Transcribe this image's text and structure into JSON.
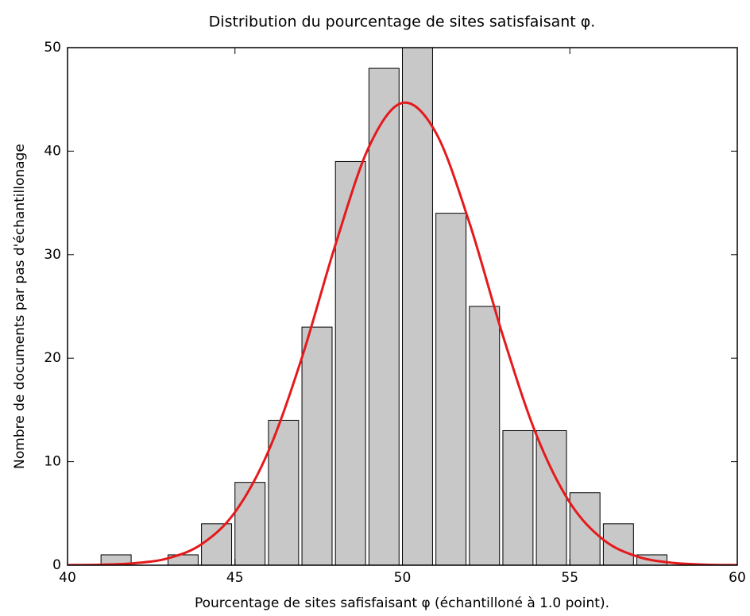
{
  "chart_data": {
    "type": "histogram",
    "title": "Distribution du pourcentage de sites satisfaisant φ.",
    "xlabel": "Pourcentage de sites safisfaisant φ (échantilloné à 1.0 point).",
    "ylabel": "Nombre de documents par pas d'échantillonage",
    "bins": [
      41,
      42,
      43,
      44,
      45,
      46,
      47,
      48,
      49,
      50,
      51,
      52,
      53,
      54,
      55,
      56,
      57,
      58
    ],
    "counts": [
      1,
      0,
      1,
      4,
      8,
      14,
      23,
      39,
      48,
      50,
      34,
      25,
      13,
      13,
      7,
      4,
      1
    ],
    "color": "#c8c8c8",
    "curve": {
      "color": "#e41a1c",
      "x": [
        40,
        41,
        42,
        43,
        44,
        45,
        46,
        47,
        48,
        49,
        50,
        51,
        52,
        53,
        54,
        55,
        56,
        57,
        58,
        59,
        60
      ],
      "y": [
        0.01,
        0.05,
        0.19,
        0.67,
        2.02,
        5.12,
        11.02,
        20.07,
        30.96,
        40.41,
        44.66,
        41.78,
        33.09,
        22.18,
        12.59,
        6.05,
        2.46,
        0.85,
        0.25,
        0.06,
        0.01
      ]
    },
    "xlim": [
      40,
      60
    ],
    "xticks": [
      40,
      45,
      50,
      55,
      60
    ],
    "ylim": [
      0,
      50
    ],
    "yticks": [
      0,
      10,
      20,
      30,
      40,
      50
    ]
  }
}
